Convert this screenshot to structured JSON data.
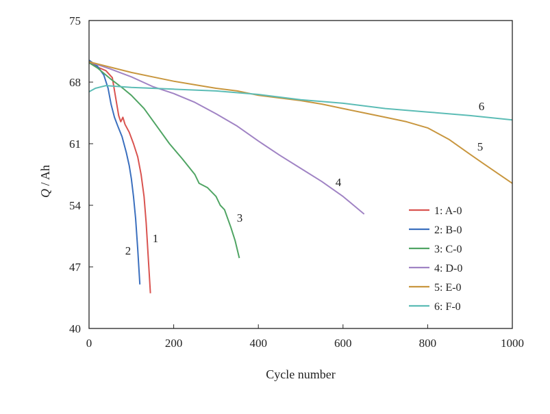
{
  "chart_data": {
    "type": "line",
    "xlabel": "Cycle number",
    "ylabel_italic": "Q",
    "ylabel_unit": " / Ah",
    "xlim": [
      0,
      1000
    ],
    "ylim": [
      40,
      75
    ],
    "xticks": [
      0,
      200,
      400,
      600,
      800,
      1000
    ],
    "yticks": [
      40,
      47,
      54,
      61,
      68,
      75
    ],
    "grid": false,
    "legend_position": "lower-right",
    "series": [
      {
        "name": "1: A-0",
        "label": "1",
        "color": "#d9534f",
        "points": [
          [
            0,
            70.3
          ],
          [
            20,
            69.7
          ],
          [
            40,
            69.3
          ],
          [
            55,
            68.5
          ],
          [
            62,
            66.5
          ],
          [
            70,
            64.2
          ],
          [
            75,
            63.5
          ],
          [
            80,
            64.0
          ],
          [
            85,
            63.2
          ],
          [
            95,
            62.3
          ],
          [
            105,
            61.0
          ],
          [
            115,
            59.5
          ],
          [
            123,
            57.5
          ],
          [
            130,
            55.0
          ],
          [
            135,
            52.0
          ],
          [
            140,
            48.0
          ],
          [
            145,
            44.0
          ]
        ]
      },
      {
        "name": "2: B-0",
        "label": "2",
        "color": "#3a6fbe",
        "points": [
          [
            0,
            70.5
          ],
          [
            20,
            69.8
          ],
          [
            35,
            68.8
          ],
          [
            45,
            67.3
          ],
          [
            52,
            65.5
          ],
          [
            60,
            64.0
          ],
          [
            68,
            63.0
          ],
          [
            78,
            61.8
          ],
          [
            88,
            60.0
          ],
          [
            95,
            58.5
          ],
          [
            100,
            57.0
          ],
          [
            105,
            55.0
          ],
          [
            110,
            52.5
          ],
          [
            115,
            49.0
          ],
          [
            120,
            45.0
          ]
        ]
      },
      {
        "name": "3: C-0",
        "label": "3",
        "color": "#4fa463",
        "points": [
          [
            0,
            70.2
          ],
          [
            20,
            69.6
          ],
          [
            50,
            68.4
          ],
          [
            80,
            67.3
          ],
          [
            100,
            66.5
          ],
          [
            130,
            65.0
          ],
          [
            160,
            63.0
          ],
          [
            190,
            61.0
          ],
          [
            220,
            59.3
          ],
          [
            250,
            57.5
          ],
          [
            260,
            56.5
          ],
          [
            280,
            56.0
          ],
          [
            300,
            55.0
          ],
          [
            310,
            54.0
          ],
          [
            320,
            53.5
          ],
          [
            335,
            51.5
          ],
          [
            345,
            50.0
          ],
          [
            355,
            48.0
          ]
        ]
      },
      {
        "name": "4: D-0",
        "label": "4",
        "color": "#a083c4",
        "points": [
          [
            0,
            70.3
          ],
          [
            50,
            69.5
          ],
          [
            100,
            68.6
          ],
          [
            150,
            67.5
          ],
          [
            200,
            66.7
          ],
          [
            250,
            65.7
          ],
          [
            300,
            64.4
          ],
          [
            350,
            63.0
          ],
          [
            400,
            61.3
          ],
          [
            450,
            59.7
          ],
          [
            500,
            58.2
          ],
          [
            550,
            56.7
          ],
          [
            600,
            55.0
          ],
          [
            625,
            54.0
          ],
          [
            650,
            53.0
          ]
        ]
      },
      {
        "name": "5: E-0",
        "label": "5",
        "color": "#c8963e",
        "points": [
          [
            0,
            70.3
          ],
          [
            50,
            69.7
          ],
          [
            100,
            69.1
          ],
          [
            150,
            68.6
          ],
          [
            200,
            68.1
          ],
          [
            250,
            67.7
          ],
          [
            300,
            67.3
          ],
          [
            350,
            67.0
          ],
          [
            400,
            66.5
          ],
          [
            450,
            66.2
          ],
          [
            500,
            65.9
          ],
          [
            550,
            65.5
          ],
          [
            600,
            65.0
          ],
          [
            650,
            64.5
          ],
          [
            700,
            64.0
          ],
          [
            750,
            63.5
          ],
          [
            800,
            62.8
          ],
          [
            850,
            61.5
          ],
          [
            900,
            59.8
          ],
          [
            930,
            58.8
          ],
          [
            960,
            57.8
          ],
          [
            1000,
            56.5
          ]
        ]
      },
      {
        "name": "6: F-0",
        "label": "6",
        "color": "#5bbcb5",
        "points": [
          [
            0,
            66.9
          ],
          [
            15,
            67.3
          ],
          [
            40,
            67.6
          ],
          [
            100,
            67.4
          ],
          [
            200,
            67.2
          ],
          [
            300,
            67.0
          ],
          [
            400,
            66.6
          ],
          [
            500,
            66.0
          ],
          [
            600,
            65.6
          ],
          [
            700,
            65.0
          ],
          [
            800,
            64.6
          ],
          [
            900,
            64.2
          ],
          [
            1000,
            63.7
          ]
        ]
      }
    ]
  }
}
